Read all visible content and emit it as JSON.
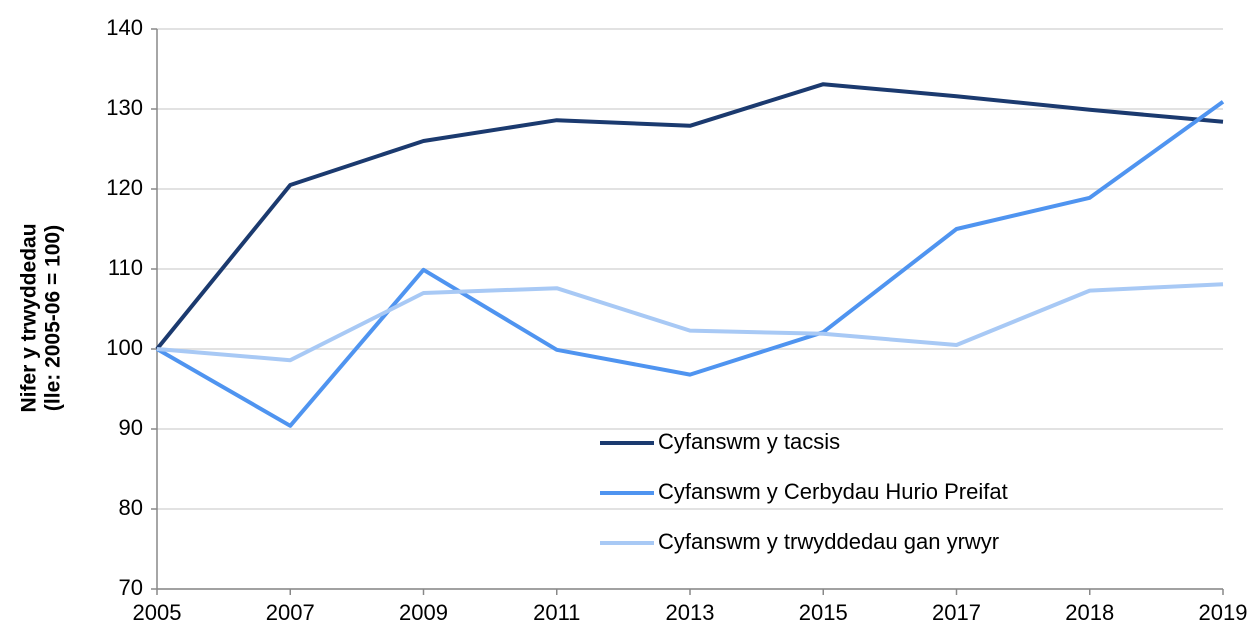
{
  "chart_data": {
    "type": "line",
    "ylabel": [
      "Nifer y trwyddedau",
      "(lle: 2005-06 = 100)"
    ],
    "categories": [
      "2005",
      "2007",
      "2009",
      "2011",
      "2013",
      "2015",
      "2017",
      "2018",
      "2019"
    ],
    "series": [
      {
        "name": "Cyfanswm y tacsis",
        "color": "#1b3a6f",
        "values": [
          100,
          120.5,
          126,
          128.6,
          127.9,
          133.1,
          131.6,
          129.9,
          128.4
        ]
      },
      {
        "name": "Cyfanswm y Cerbydau Hurio Preifat",
        "color": "#4f94f0",
        "values": [
          100,
          90.4,
          109.9,
          99.9,
          96.8,
          102.1,
          115,
          118.9,
          130.9
        ]
      },
      {
        "name": "Cyfanswm y trwyddedau gan yrwyr",
        "color": "#a8c9f5",
        "values": [
          100,
          98.6,
          107,
          107.6,
          102.3,
          101.9,
          100.5,
          107.3,
          108.1
        ]
      }
    ],
    "ylim": [
      70,
      140
    ],
    "yticks": [
      70,
      80,
      90,
      100,
      110,
      120,
      130,
      140
    ],
    "grid": true,
    "legend": "lower-center"
  }
}
